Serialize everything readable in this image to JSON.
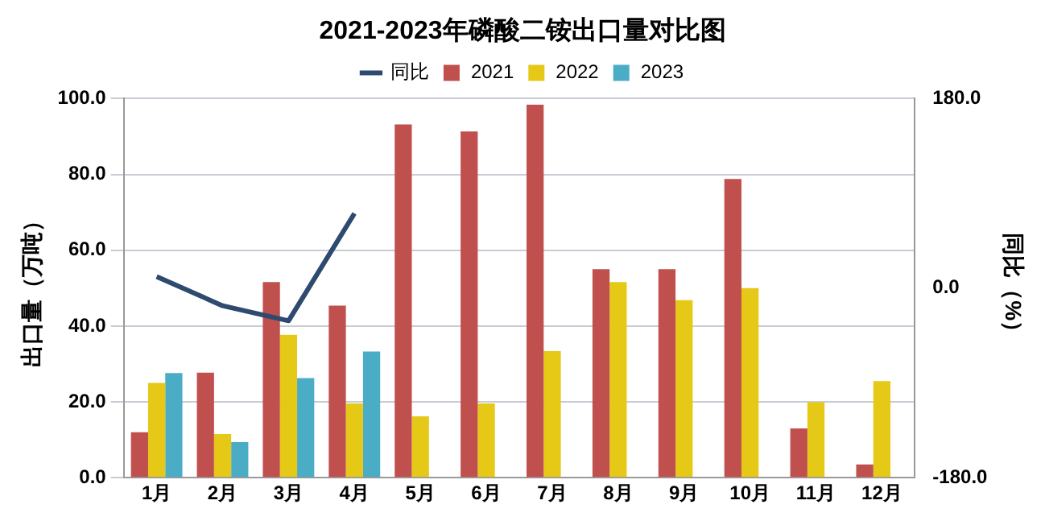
{
  "chart_data": {
    "type": "bar",
    "title": "2021-2023年磷酸二铵出口量对比图",
    "ylabel": "出口量（万吨）",
    "y2label": "同比（%）",
    "categories": [
      "1月",
      "2月",
      "3月",
      "4月",
      "5月",
      "6月",
      "7月",
      "8月",
      "9月",
      "10月",
      "11月",
      "12月"
    ],
    "series": [
      {
        "name": "2021",
        "color": "#c0504d",
        "values": [
          12,
          27.7,
          51.6,
          45.4,
          93.2,
          91.3,
          98.4,
          55,
          55,
          78.8,
          13,
          3.5
        ]
      },
      {
        "name": "2022",
        "color": "#e6c817",
        "values": [
          25,
          11.5,
          37.7,
          19.6,
          16.2,
          19.6,
          33.4,
          51.6,
          46.8,
          50,
          19.9,
          25.5
        ]
      },
      {
        "name": "2023",
        "color": "#4bacc6",
        "values": [
          27.6,
          9.4,
          26.3,
          33.3,
          null,
          null,
          null,
          null,
          null,
          null,
          null,
          null
        ]
      },
      {
        "name": "同比",
        "type": "line",
        "axis": "y2",
        "color": "#2e4a6e",
        "values": [
          11,
          -16.7,
          -31,
          71,
          null,
          null,
          null,
          null,
          null,
          null,
          null,
          null
        ]
      }
    ],
    "ylim": [
      0,
      100
    ],
    "yticks": [
      {
        "value": 0,
        "label": "0.0"
      },
      {
        "value": 20,
        "label": "20.0"
      },
      {
        "value": 40,
        "label": "40.0"
      },
      {
        "value": 60,
        "label": "60.0"
      },
      {
        "value": 80,
        "label": "80.0"
      },
      {
        "value": 100,
        "label": "100.0"
      }
    ],
    "y2lim": [
      -180,
      180
    ],
    "y2ticks": [
      {
        "value": -180,
        "label": "-180.0"
      },
      {
        "value": 0,
        "label": "0.0"
      },
      {
        "value": 180,
        "label": "180.0"
      }
    ],
    "grid": "y",
    "legend": "top",
    "marker": "none",
    "line_style": "solid"
  }
}
